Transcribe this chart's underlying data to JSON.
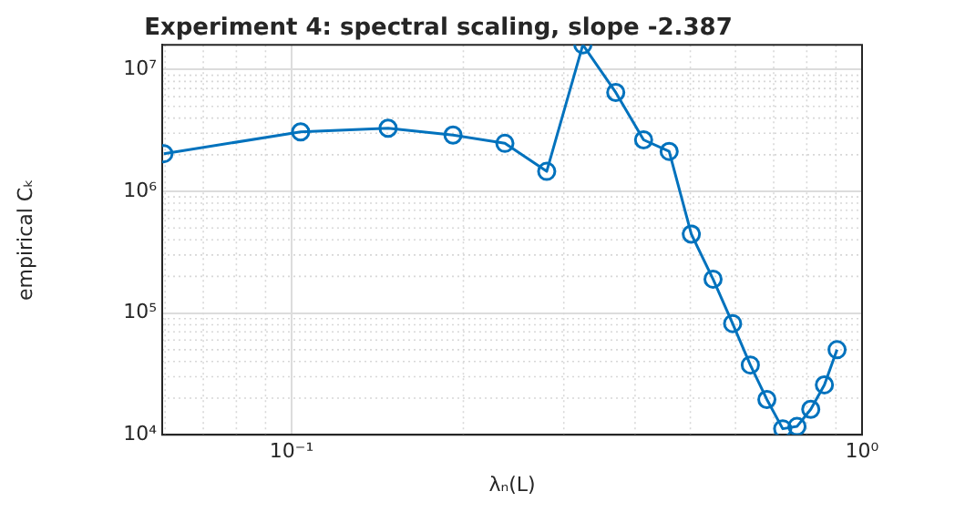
{
  "chart_data": {
    "type": "line",
    "title": "Experiment 4: spectral scaling, slope -2.387",
    "xlabel": "λₙ(L)",
    "ylabel": "empirical Cₖ",
    "x": [
      0.0597,
      0.1037,
      0.1476,
      0.1918,
      0.2365,
      0.28,
      0.324,
      0.37,
      0.414,
      0.459,
      0.502,
      0.548,
      0.593,
      0.637,
      0.681,
      0.726,
      0.769,
      0.813,
      0.859,
      0.904
    ],
    "series": [
      {
        "color": "#0072bd",
        "values": [
          2040000,
          3080000,
          3300000,
          2900000,
          2480000,
          1460000,
          16000000,
          6500000,
          2650000,
          2130000,
          445000,
          190000,
          82000,
          37400,
          19500,
          11200,
          11700,
          16200,
          25700,
          50000
        ]
      }
    ],
    "log": "xy",
    "xlim": [
      0.0593,
      1
    ],
    "ylim": [
      10000,
      16000000
    ],
    "xticks": [
      {
        "value": 0.1,
        "label": "10⁻¹"
      },
      {
        "value": 1,
        "label": "10⁰"
      }
    ],
    "yticks": [
      {
        "value": 10000,
        "label": "10⁴"
      },
      {
        "value": 100000,
        "label": "10⁵"
      },
      {
        "value": 1000000,
        "label": "10⁶"
      },
      {
        "value": 10000000,
        "label": "10⁷"
      }
    ],
    "grid": true,
    "marker": "circle",
    "line_style": "solid",
    "legend": false
  }
}
